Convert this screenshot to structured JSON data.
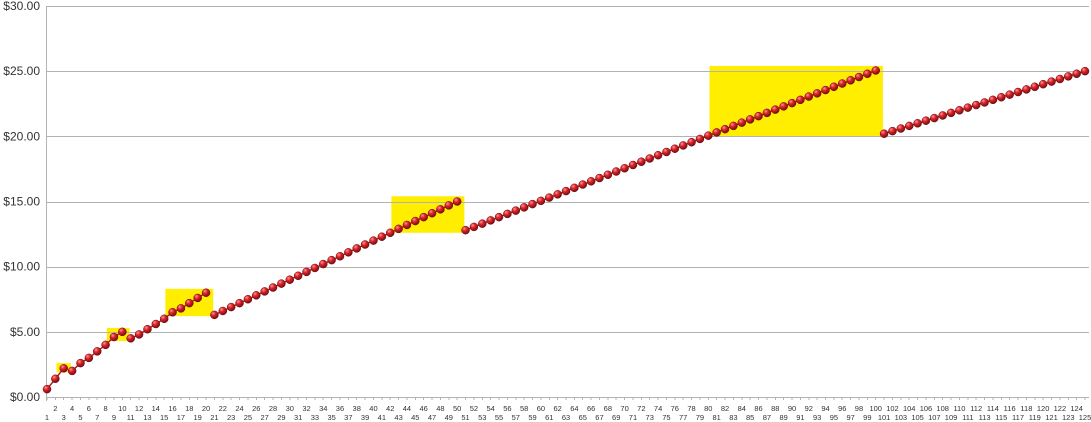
{
  "chart_data": {
    "type": "line",
    "title": "",
    "xlabel": "",
    "ylabel": "",
    "ylim": [
      0,
      30
    ],
    "y_ticks": [
      "$0.00",
      "$5.00",
      "$10.00",
      "$15.00",
      "$20.00",
      "$25.00",
      "$30.00"
    ],
    "y_tick_values": [
      0,
      5,
      10,
      15,
      20,
      25,
      30
    ],
    "x_range": [
      1,
      125
    ],
    "grid": "horizontal",
    "legend": "none",
    "marker": "sphere",
    "colors": {
      "line": "#a8141a",
      "marker": "#d21f26",
      "highlight": "#ffee00",
      "grid": "#b3b3b3"
    },
    "highlight_ranges": [
      {
        "x": [
          3,
          3
        ],
        "y": [
          1.9,
          2.6
        ]
      },
      {
        "x": [
          9,
          10
        ],
        "y": [
          4.3,
          5.3
        ]
      },
      {
        "x": [
          16,
          20
        ],
        "y": [
          6.2,
          8.3
        ]
      },
      {
        "x": [
          43,
          50
        ],
        "y": [
          12.6,
          15.4
        ]
      },
      {
        "x": [
          81,
          100
        ],
        "y": [
          20.0,
          25.4
        ]
      }
    ],
    "series": [
      {
        "x": [
          1,
          2,
          3,
          4,
          5,
          6,
          7,
          8,
          9,
          10,
          11,
          12,
          13,
          14,
          15,
          16,
          17,
          18,
          19,
          20,
          21,
          22,
          23,
          24,
          25,
          26,
          27,
          28,
          29,
          30,
          31,
          32,
          33,
          34,
          35,
          36,
          37,
          38,
          39,
          40,
          41,
          42,
          43,
          44,
          45,
          46,
          47,
          48,
          49,
          50,
          51,
          52,
          53,
          54,
          55,
          56,
          57,
          58,
          59,
          60,
          61,
          62,
          63,
          64,
          65,
          66,
          67,
          68,
          69,
          70,
          71,
          72,
          73,
          74,
          75,
          76,
          77,
          78,
          79,
          80,
          81,
          82,
          83,
          84,
          85,
          86,
          87,
          88,
          89,
          90,
          91,
          92,
          93,
          94,
          95,
          96,
          97,
          98,
          99,
          100,
          101,
          102,
          103,
          104,
          105,
          106,
          107,
          108,
          109,
          110,
          111,
          112,
          113,
          114,
          115,
          116,
          117,
          118,
          119,
          120,
          121,
          122,
          123,
          124,
          125
        ],
        "values": [
          0.6,
          1.4,
          2.2,
          2.0,
          2.6,
          3.0,
          3.5,
          4.0,
          4.6,
          5.0,
          4.5,
          4.8,
          5.2,
          5.6,
          6.0,
          6.5,
          6.8,
          7.2,
          7.6,
          8.0,
          6.3,
          6.6,
          6.9,
          7.2,
          7.5,
          7.8,
          8.1,
          8.4,
          8.7,
          9.0,
          9.3,
          9.6,
          9.9,
          10.2,
          10.5,
          10.8,
          11.1,
          11.4,
          11.7,
          12.0,
          12.3,
          12.6,
          12.9,
          13.2,
          13.5,
          13.8,
          14.1,
          14.4,
          14.7,
          15.0,
          12.8,
          13.05,
          13.3,
          13.55,
          13.8,
          14.05,
          14.3,
          14.55,
          14.8,
          15.05,
          15.3,
          15.55,
          15.8,
          16.05,
          16.3,
          16.55,
          16.8,
          17.05,
          17.3,
          17.55,
          17.8,
          18.05,
          18.3,
          18.55,
          18.8,
          19.05,
          19.3,
          19.55,
          19.8,
          20.05,
          20.3,
          20.55,
          20.8,
          21.05,
          21.3,
          21.55,
          21.8,
          22.05,
          22.3,
          22.55,
          22.8,
          23.05,
          23.3,
          23.55,
          23.8,
          24.05,
          24.3,
          24.55,
          24.8,
          25.05,
          20.2,
          20.4,
          20.6,
          20.8,
          21.0,
          21.2,
          21.4,
          21.6,
          21.8,
          22.0,
          22.2,
          22.4,
          22.6,
          22.8,
          23.0,
          23.2,
          23.4,
          23.6,
          23.8,
          24.0,
          24.2,
          24.4,
          24.6,
          24.8,
          25.0
        ],
        "breaks_after": [
          3,
          10,
          20,
          50,
          100
        ]
      }
    ]
  }
}
